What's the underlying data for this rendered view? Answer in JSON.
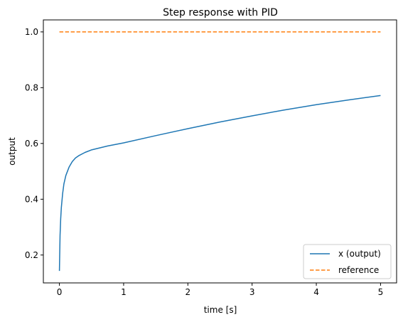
{
  "chart_data": {
    "type": "line",
    "title": "Step response with PID",
    "xlabel": "time [s]",
    "ylabel": "output",
    "xlim": [
      -0.25,
      5.25
    ],
    "ylim": [
      0.1,
      1.043
    ],
    "x_ticks": [
      0,
      1,
      2,
      3,
      4,
      5
    ],
    "y_ticks": [
      0.2,
      0.4,
      0.6,
      0.8,
      1.0
    ],
    "x_tick_labels": [
      "0",
      "1",
      "2",
      "3",
      "4",
      "5"
    ],
    "y_tick_labels": [
      "0.2",
      "0.4",
      "0.6",
      "0.8",
      "1.0"
    ],
    "grid": false,
    "legend": "lower-right",
    "series": [
      {
        "name": "x (output)",
        "color": "#1f77b4",
        "style": "solid",
        "x": [
          0,
          0.01,
          0.02,
          0.03,
          0.05,
          0.07,
          0.1,
          0.15,
          0.2,
          0.25,
          0.3,
          0.4,
          0.5,
          0.75,
          1.0,
          1.5,
          2.0,
          2.5,
          3.0,
          3.5,
          4.0,
          4.5,
          5.0
        ],
        "y": [
          0.143,
          0.27,
          0.33,
          0.37,
          0.42,
          0.455,
          0.485,
          0.515,
          0.535,
          0.548,
          0.556,
          0.568,
          0.577,
          0.591,
          0.602,
          0.628,
          0.653,
          0.677,
          0.699,
          0.72,
          0.739,
          0.756,
          0.772
        ]
      },
      {
        "name": "reference",
        "color": "#ff7f0e",
        "style": "dashed",
        "x": [
          0,
          5
        ],
        "y": [
          1.0,
          1.0
        ]
      }
    ]
  }
}
